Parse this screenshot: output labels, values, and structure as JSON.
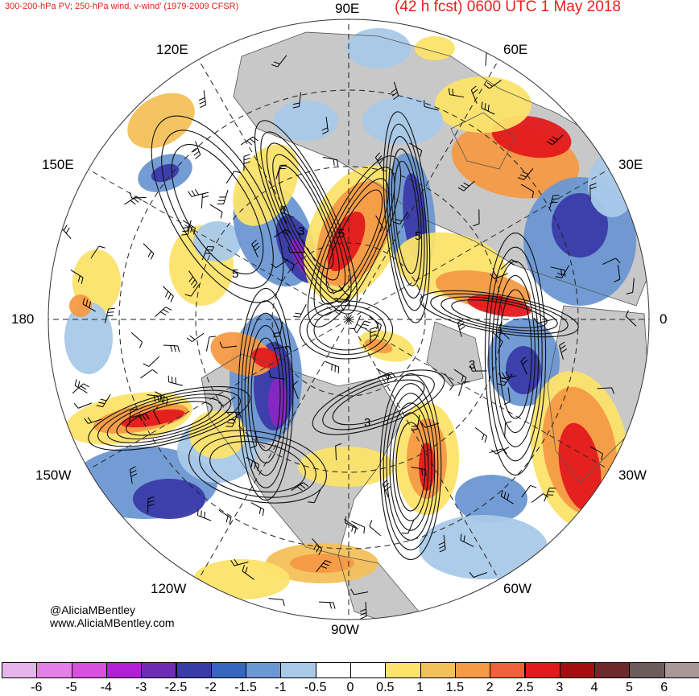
{
  "header": {
    "subtitle": "300-200-hPa PV; 250-hPa wind, v-wind' (1979-2009 CFSR)",
    "forecast": "(42 h fcst) 0600 UTC 1 May 2018"
  },
  "longitudes": {
    "top": "90E",
    "e60": "60E",
    "e30": "30E",
    "right": "0",
    "w30": "30W",
    "w60": "60W",
    "bottom": "90W",
    "w120": "120W",
    "w150": "150W",
    "left": "180",
    "e150": "150E",
    "e120": "120E"
  },
  "credits": {
    "handle": "@AliciaMBentley",
    "website": "www.AliciaMBentley.com"
  },
  "contour_labels": [
    "5",
    "5",
    "3",
    "5",
    "3",
    "3"
  ],
  "colorbar": {
    "ticks": [
      "-6",
      "-5",
      "-4",
      "-3",
      "-2.5",
      "-2",
      "-1.5",
      "-1",
      "-0.5",
      "0",
      "0.5",
      "1",
      "1.5",
      "2",
      "2.5",
      "3",
      "4",
      "5",
      "6"
    ],
    "colors": [
      "#e6b4ea",
      "#e67ee8",
      "#d94fe0",
      "#b11fd6",
      "#6e2bb3",
      "#3a3aa8",
      "#3766c0",
      "#6b97d2",
      "#a9c9e8",
      "#ffffff",
      "#ffffff",
      "#fce36a",
      "#f3c15a",
      "#f59a45",
      "#f0603a",
      "#e31a1c",
      "#a30e0e",
      "#6e2a2a",
      "#6c5c5c",
      "#a89898"
    ]
  },
  "shading": {
    "land": "#c8c8c8",
    "neg_light": "#a9c9e8",
    "neg_mid": "#6b97d2",
    "neg_strong": "#3a3aa8",
    "neg_extreme": "#8b26c4",
    "pos_light": "#fce36a",
    "pos_mid": "#f3c15a",
    "pos_orange": "#f59a45",
    "pos_red": "#e31a1c"
  }
}
